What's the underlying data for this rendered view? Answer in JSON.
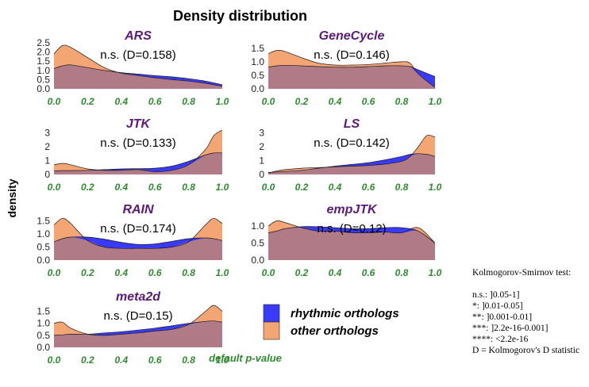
{
  "title": "Density distribution",
  "ylabel": "density",
  "xlabel": "default p-value",
  "legend": {
    "items": [
      {
        "label": "rhythmic orthologs",
        "color": "#3333ff"
      },
      {
        "label": "other orthologs",
        "color": "#f3a06a"
      }
    ]
  },
  "ks_note": {
    "heading": "Kolmogorov-Smirnov test:",
    "lines": [
      "n.s.:  ]0.05-1]",
      "*:  ]0.01-0.05]",
      "**:  ]0.001-0.01]",
      "***:  ]2.2e-16-0.001]",
      "****:  <2.2e-16",
      "D = Kolmogorov's D statistic"
    ]
  },
  "colors": {
    "rhythmic": "#3a3aff",
    "other": "#f3a574",
    "overlap": "#b07a86",
    "title": "#5b1a7a",
    "tick_green": "#2f8a2f"
  },
  "chart_data": [
    {
      "type": "area",
      "title": "ARS",
      "stat": "n.s. (D=0.158)",
      "ylim": [
        0,
        2.5
      ],
      "yticks": [
        "0.0",
        "0.5",
        "1.0",
        "1.5",
        "2.0",
        "2.5"
      ],
      "ytick_values": [
        0,
        0.5,
        1,
        1.5,
        2,
        2.5
      ],
      "x": [
        0,
        0.05,
        0.1,
        0.2,
        0.3,
        0.4,
        0.5,
        0.6,
        0.7,
        0.8,
        0.9,
        1.0
      ],
      "xticks": [
        "0.0",
        "0.2",
        "0.4",
        "0.6",
        "0.8",
        "1.0"
      ],
      "xlim": [
        0,
        1
      ],
      "series": [
        {
          "name": "rhythmic orthologs",
          "values": [
            1.1,
            1.25,
            1.3,
            1.15,
            1.0,
            0.88,
            0.8,
            0.72,
            0.65,
            0.55,
            0.42,
            0.22
          ]
        },
        {
          "name": "other orthologs",
          "values": [
            1.9,
            2.35,
            2.25,
            1.7,
            1.15,
            0.85,
            0.72,
            0.6,
            0.5,
            0.42,
            0.3,
            0.14
          ]
        }
      ]
    },
    {
      "type": "area",
      "title": "GeneCycle",
      "stat": "n.s. (D=0.146)",
      "ylim": [
        0,
        1.7
      ],
      "yticks": [
        "0.0",
        "0.5",
        "1.0",
        "1.5"
      ],
      "ytick_values": [
        0,
        0.5,
        1,
        1.5
      ],
      "x": [
        0,
        0.05,
        0.1,
        0.2,
        0.3,
        0.4,
        0.5,
        0.6,
        0.7,
        0.8,
        0.85,
        0.9,
        1.0
      ],
      "xticks": [
        "0.0",
        "0.2",
        "0.4",
        "0.6",
        "0.8",
        "1.0"
      ],
      "xlim": [
        0,
        1
      ],
      "series": [
        {
          "name": "rhythmic orthologs",
          "values": [
            0.8,
            0.85,
            0.87,
            0.85,
            0.82,
            0.8,
            0.8,
            0.82,
            0.85,
            0.85,
            0.82,
            0.7,
            0.45
          ]
        },
        {
          "name": "other orthologs",
          "values": [
            1.3,
            1.42,
            1.38,
            1.15,
            0.95,
            0.88,
            0.88,
            0.9,
            0.95,
            1.0,
            0.95,
            0.55,
            0.05
          ]
        }
      ]
    },
    {
      "type": "area",
      "title": "JTK",
      "stat": "n.s. (D=0.133)",
      "ylim": [
        0,
        3.2
      ],
      "yticks": [
        "0",
        "1",
        "2",
        "3"
      ],
      "ytick_values": [
        0,
        1,
        2,
        3
      ],
      "x": [
        0,
        0.05,
        0.1,
        0.2,
        0.3,
        0.4,
        0.5,
        0.6,
        0.7,
        0.8,
        0.9,
        0.95,
        1.0
      ],
      "xticks": [
        "0.0",
        "0.2",
        "0.4",
        "0.6",
        "0.8",
        "1.0"
      ],
      "xlim": [
        0,
        1
      ],
      "series": [
        {
          "name": "rhythmic orthologs",
          "values": [
            0.25,
            0.28,
            0.28,
            0.3,
            0.35,
            0.4,
            0.42,
            0.45,
            0.6,
            0.95,
            1.4,
            1.55,
            1.55
          ]
        },
        {
          "name": "other orthologs",
          "values": [
            0.7,
            0.8,
            0.7,
            0.4,
            0.3,
            0.3,
            0.35,
            0.2,
            0.3,
            0.7,
            1.8,
            2.8,
            3.2
          ]
        }
      ]
    },
    {
      "type": "area",
      "title": "LS",
      "stat": "n.s. (D=0.142)",
      "ylim": [
        0,
        3.2
      ],
      "yticks": [
        "0",
        "1",
        "2",
        "3"
      ],
      "ytick_values": [
        0,
        1,
        2,
        3
      ],
      "x": [
        0,
        0.05,
        0.1,
        0.2,
        0.3,
        0.4,
        0.5,
        0.6,
        0.7,
        0.8,
        0.85,
        0.9,
        0.95,
        1.0
      ],
      "xticks": [
        "0.0",
        "0.2",
        "0.4",
        "0.6",
        "0.8",
        "1.0"
      ],
      "xlim": [
        0,
        1
      ],
      "series": [
        {
          "name": "rhythmic orthologs",
          "values": [
            0.15,
            0.18,
            0.22,
            0.3,
            0.45,
            0.6,
            0.72,
            0.85,
            1.05,
            1.3,
            1.45,
            1.5,
            1.45,
            1.3
          ]
        },
        {
          "name": "other orthologs",
          "values": [
            0.1,
            0.25,
            0.35,
            0.45,
            0.5,
            0.55,
            0.6,
            0.65,
            0.75,
            0.95,
            1.3,
            2.0,
            2.8,
            2.7
          ]
        }
      ]
    },
    {
      "type": "area",
      "title": "RAIN",
      "stat": "n.s. (D=0.174)",
      "ylim": [
        0,
        1.7
      ],
      "yticks": [
        "0.0",
        "0.5",
        "1.0",
        "1.5"
      ],
      "ytick_values": [
        0,
        0.5,
        1,
        1.5
      ],
      "x": [
        0,
        0.05,
        0.1,
        0.2,
        0.3,
        0.4,
        0.5,
        0.6,
        0.7,
        0.8,
        0.9,
        0.95,
        1.0
      ],
      "xticks": [
        "0.0",
        "0.2",
        "0.4",
        "0.6",
        "0.8",
        "1.0"
      ],
      "xlim": [
        0,
        1
      ],
      "series": [
        {
          "name": "rhythmic orthologs",
          "values": [
            0.7,
            0.82,
            0.88,
            0.88,
            0.8,
            0.68,
            0.6,
            0.62,
            0.72,
            0.82,
            0.85,
            0.82,
            0.75
          ]
        },
        {
          "name": "other orthologs",
          "values": [
            1.35,
            1.6,
            1.4,
            0.75,
            0.5,
            0.45,
            0.45,
            0.45,
            0.5,
            0.7,
            1.35,
            1.6,
            1.4
          ]
        }
      ]
    },
    {
      "type": "area",
      "title": "empJTK",
      "stat": "n.s. (D=0.12)",
      "ylim": [
        0,
        1.3
      ],
      "yticks": [
        "0.0",
        "0.5",
        "1.0"
      ],
      "ytick_values": [
        0,
        0.5,
        1
      ],
      "x": [
        0,
        0.05,
        0.1,
        0.2,
        0.3,
        0.4,
        0.5,
        0.6,
        0.7,
        0.8,
        0.9,
        1.0
      ],
      "xticks": [
        "0.0",
        "0.2",
        "0.4",
        "0.6",
        "0.8",
        "1.0"
      ],
      "xlim": [
        0,
        1
      ],
      "series": [
        {
          "name": "rhythmic orthologs",
          "values": [
            0.8,
            0.85,
            0.92,
            0.98,
            0.98,
            0.95,
            0.92,
            0.92,
            0.95,
            0.95,
            0.85,
            0.5
          ]
        },
        {
          "name": "other orthologs",
          "values": [
            1.0,
            1.15,
            1.1,
            0.95,
            0.85,
            0.85,
            0.8,
            0.8,
            0.82,
            0.8,
            0.95,
            0.5
          ]
        }
      ]
    },
    {
      "type": "area",
      "title": "meta2d",
      "stat": "n.s. (D=0.15)",
      "ylim": [
        0,
        1.85
      ],
      "yticks": [
        "0.0",
        "0.5",
        "1.0",
        "1.5"
      ],
      "ytick_values": [
        0,
        0.5,
        1,
        1.5
      ],
      "x": [
        0,
        0.05,
        0.1,
        0.2,
        0.3,
        0.4,
        0.5,
        0.6,
        0.7,
        0.8,
        0.9,
        0.95,
        1.0
      ],
      "xticks": [
        "0.0",
        "0.2",
        "0.4",
        "0.6",
        "0.8",
        "1.0"
      ],
      "xlim": [
        0,
        1
      ],
      "series": [
        {
          "name": "rhythmic orthologs",
          "values": [
            0.5,
            0.52,
            0.55,
            0.55,
            0.6,
            0.65,
            0.72,
            0.8,
            0.9,
            1.0,
            1.08,
            1.1,
            1.05
          ]
        },
        {
          "name": "other orthologs",
          "values": [
            1.0,
            1.05,
            0.8,
            0.55,
            0.5,
            0.55,
            0.6,
            0.68,
            0.75,
            0.95,
            1.5,
            1.75,
            1.5
          ]
        }
      ]
    }
  ]
}
